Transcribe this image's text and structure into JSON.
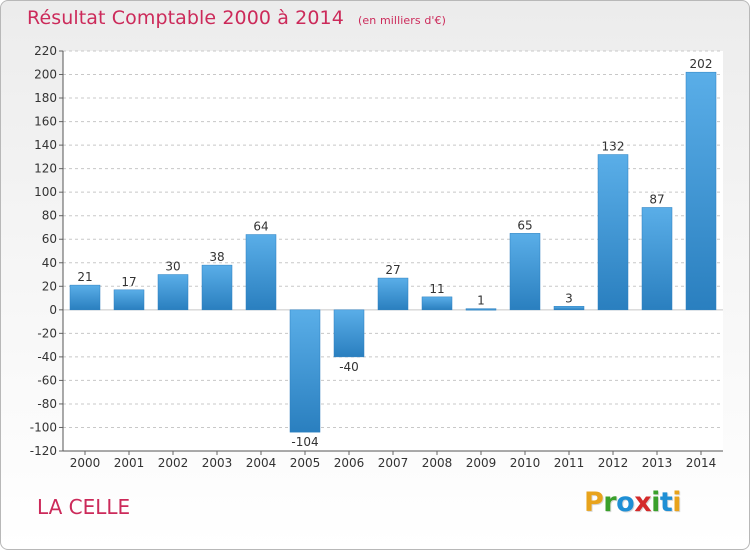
{
  "header": {
    "title": "Résultat Comptable 2000 à 2014",
    "subtitle": "(en milliers d'€)"
  },
  "commune": "LA CELLE",
  "brand": {
    "letters": [
      "P",
      "r",
      "o",
      "x",
      "i",
      "t",
      "i"
    ],
    "colors": [
      "#e8a31c",
      "#3aa02b",
      "#1e8fd5",
      "#d42a2a",
      "#3aa02b",
      "#1e8fd5",
      "#e8a31c"
    ]
  },
  "colors": {
    "title": "#cc2a5a",
    "bar_light": "#5aaee8",
    "bar_dark": "#2a7fbf",
    "grid": "#c8c8c8"
  },
  "chart_data": {
    "type": "bar",
    "title": "Résultat Comptable 2000 à 2014",
    "unit": "(en milliers d'€)",
    "xlabel": "",
    "ylabel": "",
    "ylim": [
      -120,
      220
    ],
    "yticks": [
      -120,
      -100,
      -80,
      -60,
      -40,
      -20,
      0,
      20,
      40,
      60,
      80,
      100,
      120,
      140,
      160,
      180,
      200,
      220
    ],
    "categories": [
      "2000",
      "2001",
      "2002",
      "2003",
      "2004",
      "2005",
      "2006",
      "2007",
      "2008",
      "2009",
      "2010",
      "2011",
      "2012",
      "2013",
      "2014"
    ],
    "values": [
      21,
      17,
      30,
      38,
      64,
      -104,
      -40,
      27,
      11,
      1,
      65,
      3,
      132,
      87,
      202
    ],
    "labels": [
      "21",
      "17",
      "30",
      "38",
      "64",
      "-104",
      "-40",
      "27",
      "11",
      "1",
      "65",
      "3",
      "132",
      "87",
      "202"
    ]
  }
}
